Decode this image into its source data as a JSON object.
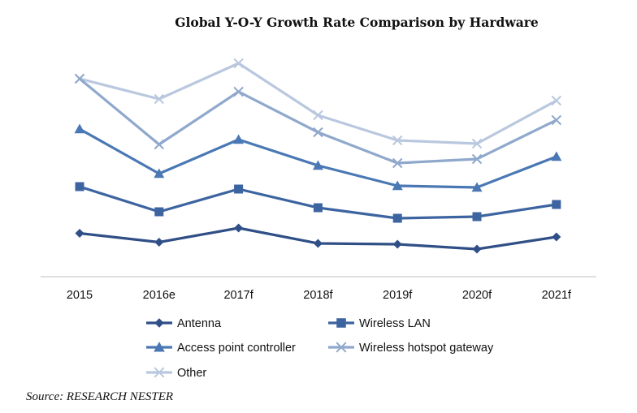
{
  "chart_data": {
    "type": "line",
    "title": "Global Y-O-Y Growth Rate Comparison by Hardware",
    "categories": [
      "2015",
      "2016e",
      "2017f",
      "2018f",
      "2019f",
      "2020f",
      "2021f"
    ],
    "xlabel": "",
    "ylabel": "",
    "ylim": [
      0,
      100
    ],
    "grid": false,
    "legend_position": "bottom",
    "series": [
      {
        "name": "Antenna",
        "marker": "diamond",
        "color": "#2f4f86",
        "values": [
          21.4,
          17.0,
          24.0,
          16.4,
          16.0,
          13.6,
          19.6
        ]
      },
      {
        "name": "Wireless LAN",
        "marker": "square",
        "color": "#3c64a0",
        "values": [
          44.4,
          32.0,
          43.2,
          34.0,
          28.8,
          29.6,
          35.6
        ]
      },
      {
        "name": "Access point controller",
        "marker": "triangle",
        "color": "#4a78b4",
        "values": [
          72.8,
          50.8,
          67.6,
          54.8,
          44.8,
          44.0,
          59.2
        ]
      },
      {
        "name": "Wireless hotspot gateway",
        "marker": "x",
        "color": "#8fa8cc",
        "values": [
          97.6,
          65.2,
          91.2,
          71.2,
          56.0,
          58.0,
          77.2
        ]
      },
      {
        "name": "Other",
        "marker": "x",
        "color": "#b9c8df",
        "values": [
          97.6,
          87.6,
          105.2,
          79.6,
          67.2,
          65.6,
          86.8
        ]
      }
    ]
  },
  "source": "Source: RESEARCH NESTER"
}
